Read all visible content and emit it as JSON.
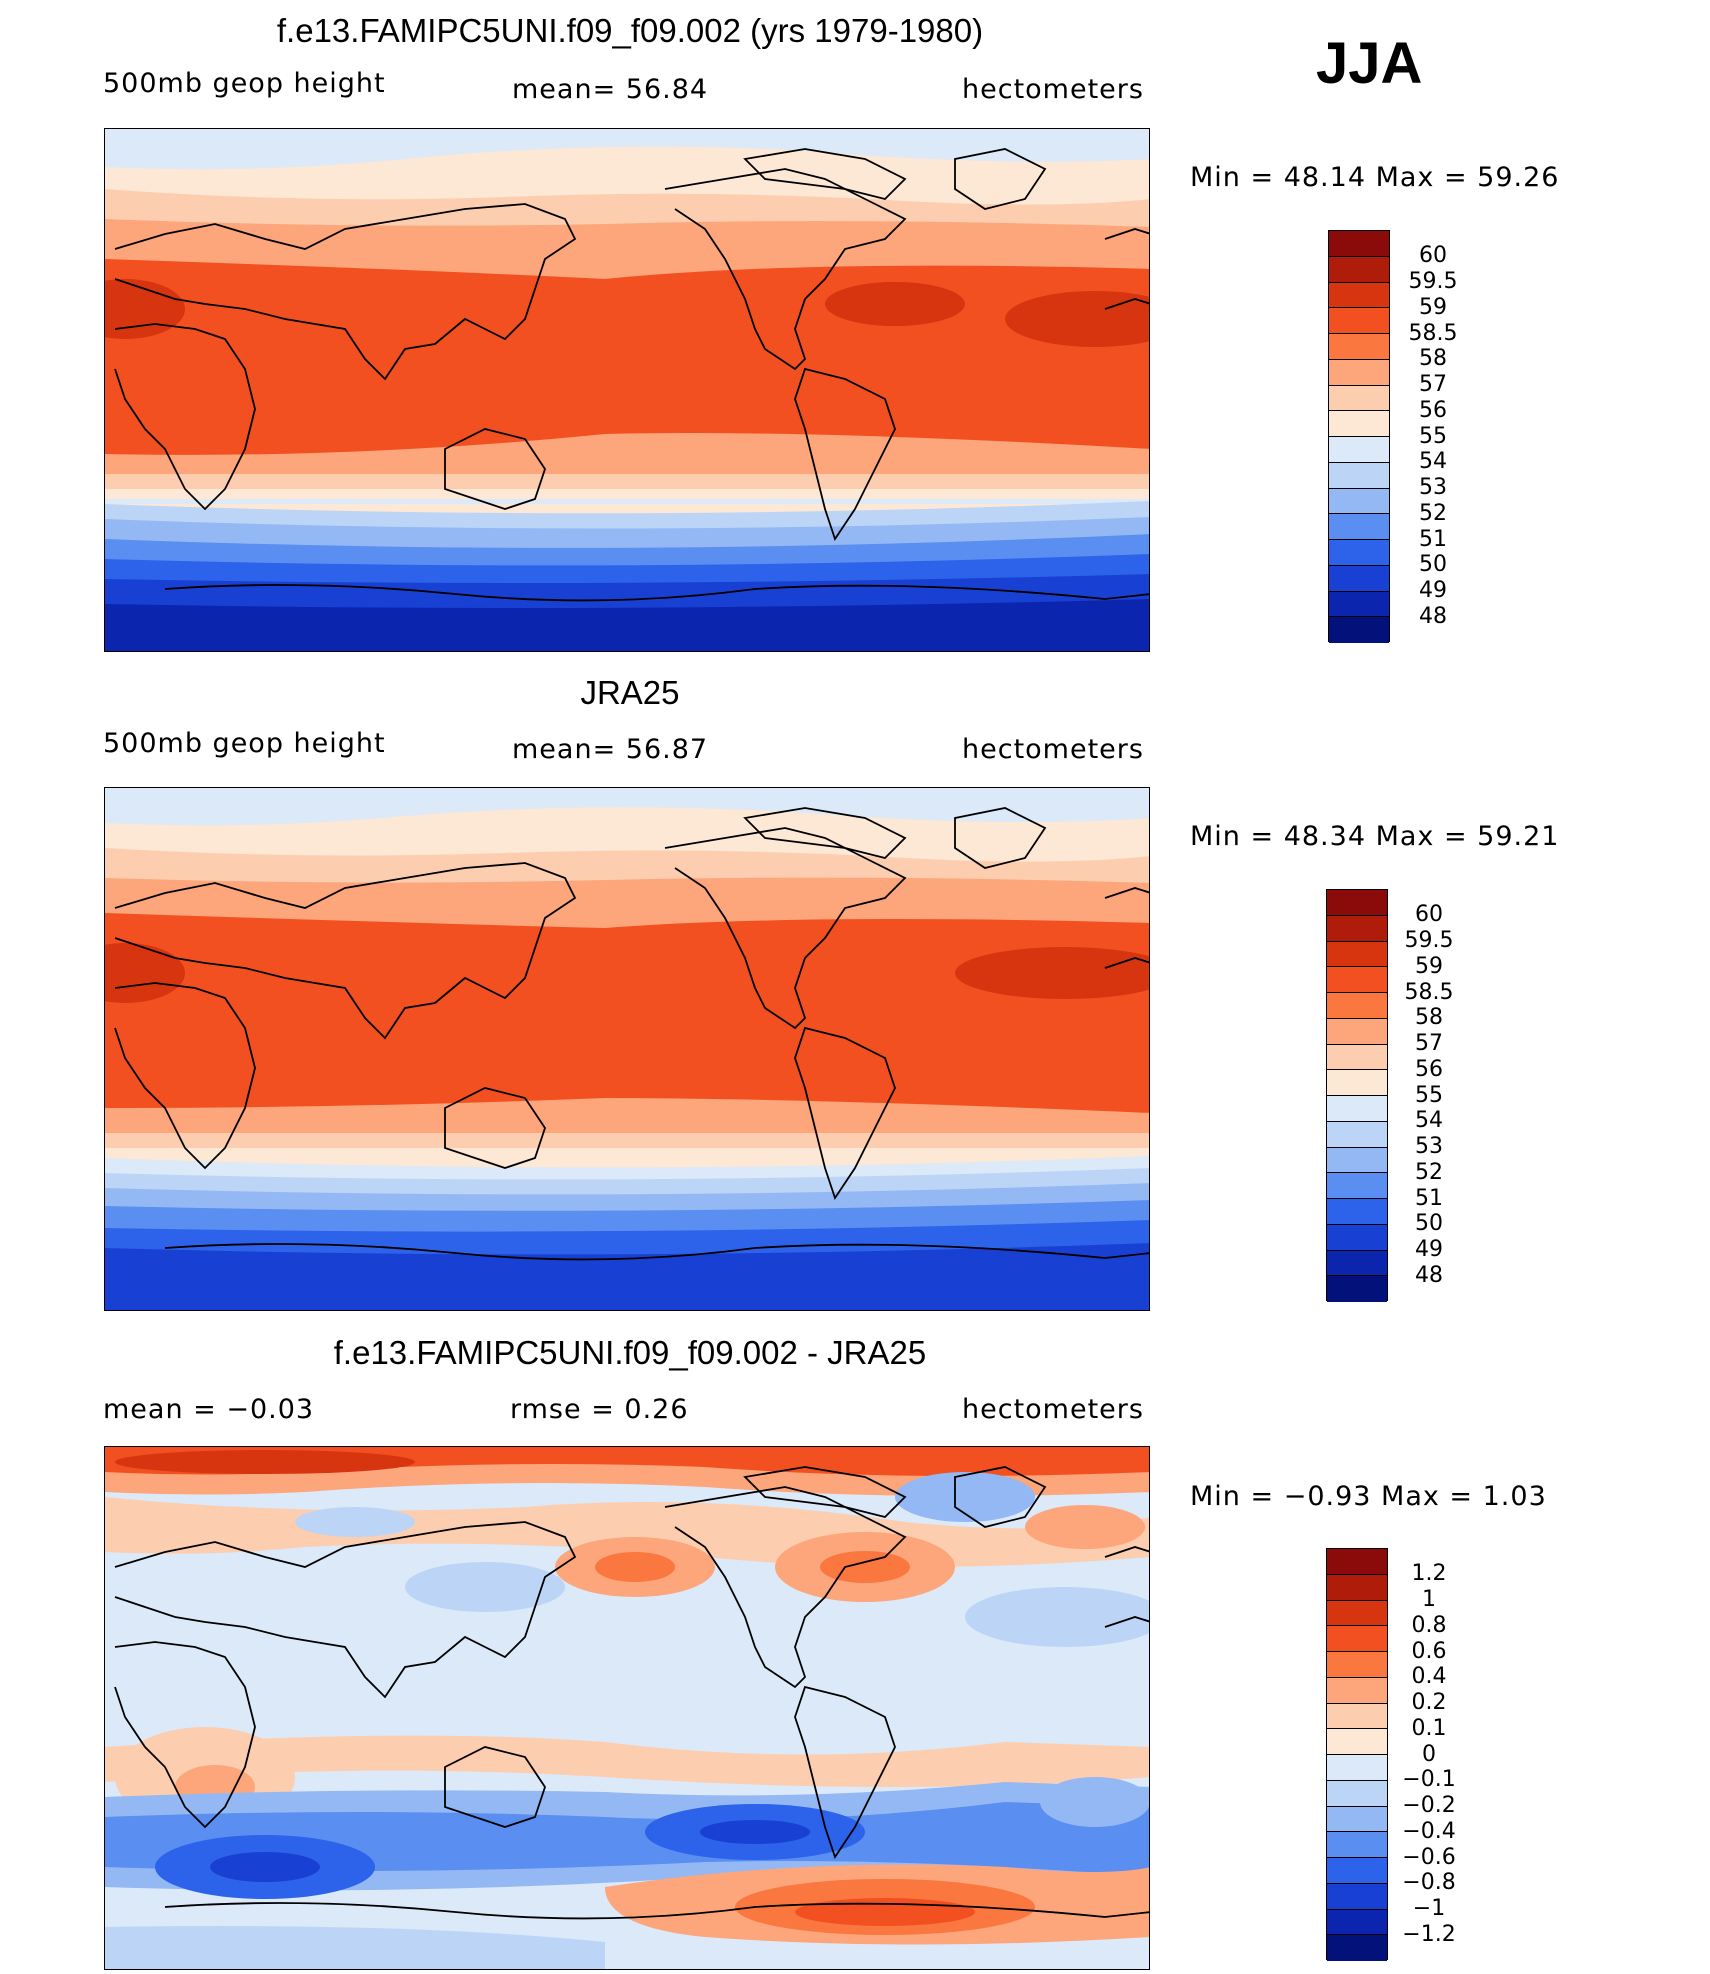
{
  "season": "JJA",
  "units": "hectometers",
  "panels": [
    {
      "title": "f.e13.FAMIPC5UNI.f09_f09.002 (yrs 1979-1980)",
      "left_label": "500mb  geop  height",
      "center_label": "mean=   56.84",
      "right_label": "hectometers",
      "min_max": "Min  =    48.14  Max  =    59.26",
      "colorbar_labels": [
        "60",
        "59.5",
        "59",
        "58.5",
        "58",
        "57",
        "56",
        "55",
        "54",
        "53",
        "52",
        "51",
        "50",
        "49",
        "48"
      ],
      "colors": [
        "#8b0a0a",
        "#b01c0a",
        "#d63510",
        "#f25020",
        "#fa7740",
        "#fda57b",
        "#fdcdb0",
        "#fde7d5",
        "#dbe9f8",
        "#bcd5f6",
        "#93b8f4",
        "#5a8ef0",
        "#2d62ea",
        "#1840d2",
        "#0b25ae",
        "#02127a"
      ]
    },
    {
      "title": "JRA25",
      "left_label": "500mb  geop  height",
      "center_label": "mean=   56.87",
      "right_label": "hectometers",
      "min_max": "Min  =    48.34  Max  =    59.21",
      "colorbar_labels": [
        "60",
        "59.5",
        "59",
        "58.5",
        "58",
        "57",
        "56",
        "55",
        "54",
        "53",
        "52",
        "51",
        "50",
        "49",
        "48"
      ],
      "colors": [
        "#8b0a0a",
        "#b01c0a",
        "#d63510",
        "#f25020",
        "#fa7740",
        "#fda57b",
        "#fdcdb0",
        "#fde7d5",
        "#dbe9f8",
        "#bcd5f6",
        "#93b8f4",
        "#5a8ef0",
        "#2d62ea",
        "#1840d2",
        "#0b25ae",
        "#02127a"
      ]
    },
    {
      "title": "f.e13.FAMIPC5UNI.f09_f09.002 - JRA25",
      "left_label": "mean  =    −0.03",
      "center_label": "rmse  =     0.26",
      "right_label": "hectometers",
      "min_max": "Min  =    −0.93  Max  =      1.03",
      "colorbar_labels": [
        "1.2",
        "1",
        "0.8",
        "0.6",
        "0.4",
        "0.2",
        "0.1",
        "0",
        "−0.1",
        "−0.2",
        "−0.4",
        "−0.6",
        "−0.8",
        "−1",
        "−1.2"
      ],
      "colors": [
        "#8b0a0a",
        "#b01c0a",
        "#d63510",
        "#f25020",
        "#fa7740",
        "#fda57b",
        "#fdcdb0",
        "#fde7d5",
        "#dbe9f8",
        "#bcd5f6",
        "#93b8f4",
        "#5a8ef0",
        "#2d62ea",
        "#1840d2",
        "#0b25ae",
        "#02127a"
      ]
    }
  ]
}
